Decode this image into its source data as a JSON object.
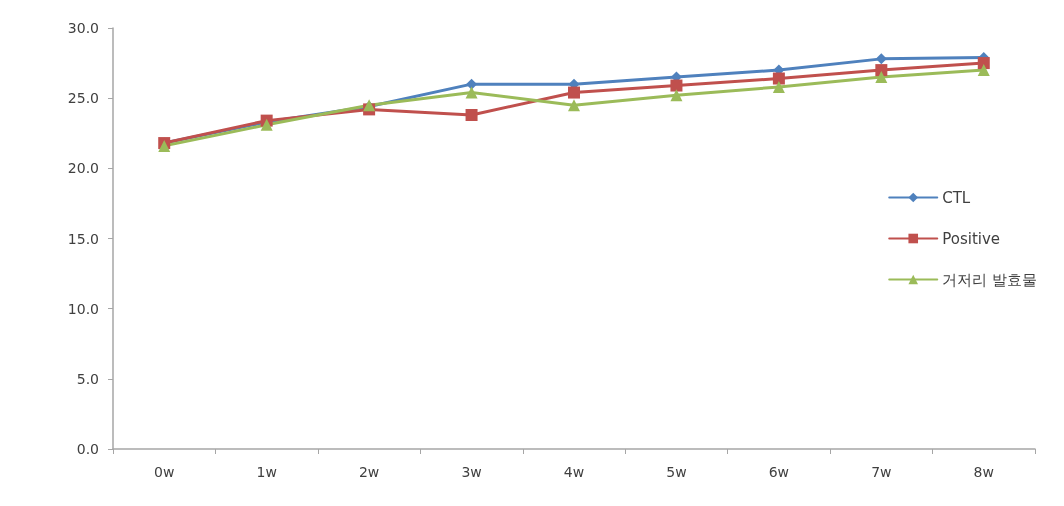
{
  "chart_data": {
    "type": "line",
    "categories": [
      "0w",
      "1w",
      "2w",
      "3w",
      "4w",
      "5w",
      "6w",
      "7w",
      "8w"
    ],
    "series": [
      {
        "name": "CTL",
        "color": "#4f81bd",
        "marker": "diamond",
        "values": [
          21.8,
          23.3,
          24.4,
          26.0,
          26.0,
          26.5,
          27.0,
          27.8,
          27.9
        ]
      },
      {
        "name": "Positive",
        "color": "#c0504d",
        "marker": "square",
        "values": [
          21.8,
          23.4,
          24.2,
          23.8,
          25.4,
          25.9,
          26.4,
          27.0,
          27.5
        ]
      },
      {
        "name": "거저리 발효물",
        "color": "#9bbb59",
        "marker": "triangle",
        "values": [
          21.6,
          23.1,
          24.5,
          25.4,
          24.5,
          25.2,
          25.8,
          26.5,
          27.0
        ]
      }
    ],
    "ylim": [
      0,
      30
    ],
    "yticks": [
      {
        "value": 0,
        "label": "0.0"
      },
      {
        "value": 5,
        "label": "5.0"
      },
      {
        "value": 10,
        "label": "10.0"
      },
      {
        "value": 15,
        "label": "15.0"
      },
      {
        "value": 20,
        "label": "20.0"
      },
      {
        "value": 25,
        "label": "25.0"
      },
      {
        "value": 30,
        "label": "30.0"
      }
    ],
    "legend": "right",
    "line_style": "solid"
  }
}
